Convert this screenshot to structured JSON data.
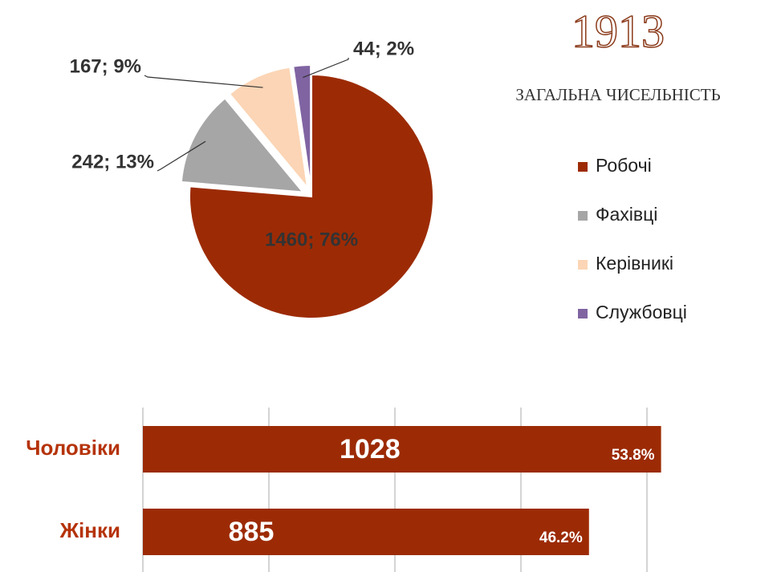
{
  "chart_data": [
    {
      "type": "pie",
      "title": "1913",
      "subtitle": "ЗАГАЛЬНА ЧИСЕЛЬНІСТЬ",
      "categories": [
        "Робочі",
        "Фахівці",
        "Керівникі",
        "Службовці"
      ],
      "values": [
        1460,
        242,
        167,
        44
      ],
      "value_labels": [
        "1460; 76%",
        "242; 13%",
        "167; 9%",
        "44; 2%"
      ],
      "colors": [
        "#9c2b05",
        "#a6a6a6",
        "#fbd5b5",
        "#8064a2"
      ],
      "legend": "right"
    },
    {
      "type": "hbar",
      "categories": [
        "Чоловіки",
        "Жінки"
      ],
      "values": [
        1028,
        885
      ],
      "shares": [
        "53.8%",
        "46.2%"
      ],
      "color": "#9c2b05",
      "xlim": [
        0,
        1250
      ],
      "xticks": [
        0,
        250,
        500,
        750,
        1000
      ],
      "grid": true
    }
  ]
}
